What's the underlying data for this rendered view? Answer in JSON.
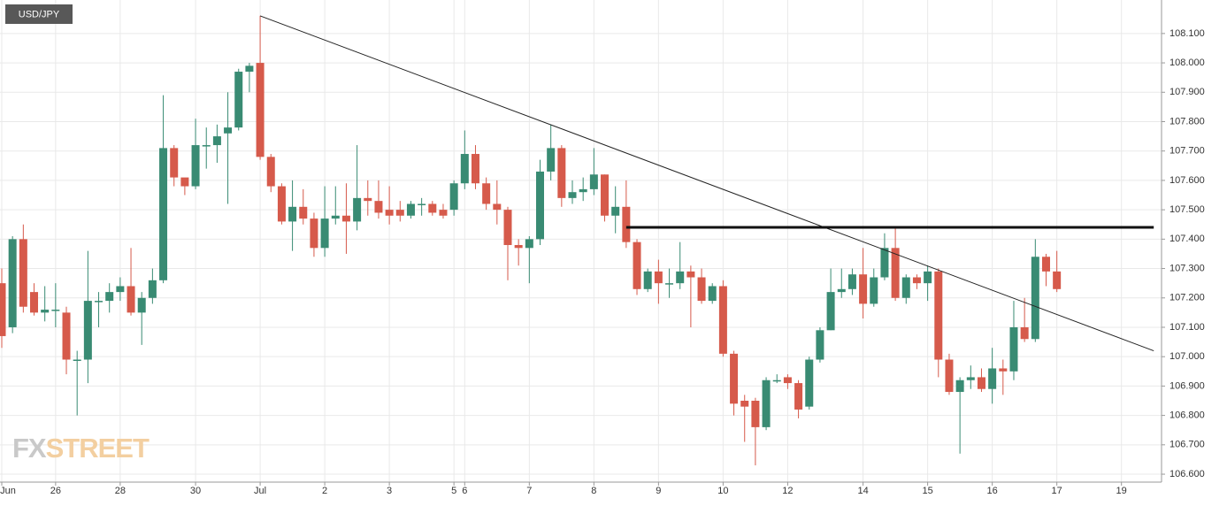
{
  "chart_data": {
    "type": "candlestick",
    "title": "USD/JPY",
    "watermark": [
      "FX",
      "STREET"
    ],
    "categories": [
      "Jun",
      null,
      null,
      null,
      null,
      "26",
      null,
      null,
      null,
      null,
      null,
      "28",
      null,
      null,
      null,
      null,
      null,
      null,
      "30",
      null,
      null,
      null,
      null,
      null,
      "Jul",
      null,
      null,
      null,
      null,
      null,
      "2",
      null,
      null,
      null,
      null,
      null,
      "3",
      null,
      null,
      null,
      null,
      null,
      "5",
      "6",
      null,
      null,
      null,
      null,
      null,
      "7",
      null,
      null,
      null,
      null,
      null,
      "8",
      null,
      null,
      null,
      null,
      null,
      "9",
      null,
      null,
      null,
      null,
      null,
      "10",
      null,
      null,
      null,
      null,
      null,
      "12",
      null,
      null,
      null,
      null,
      null,
      null,
      "14",
      null,
      null,
      null,
      null,
      null,
      "15",
      null,
      null,
      null,
      null,
      null,
      "16",
      null,
      null,
      null,
      null,
      null,
      "17",
      null,
      null,
      null,
      null,
      null,
      "19",
      null,
      null,
      null
    ],
    "open": [
      107.25,
      107.1,
      107.4,
      107.22,
      107.15,
      107.16,
      107.15,
      106.99,
      106.99,
      107.19,
      107.19,
      107.22,
      107.24,
      107.15,
      107.2,
      107.26,
      107.71,
      107.61,
      107.58,
      107.72,
      107.72,
      107.76,
      107.78,
      107.97,
      108.0,
      107.68,
      107.58,
      107.46,
      107.51,
      107.47,
      107.37,
      107.47,
      107.48,
      107.46,
      107.54,
      107.53,
      107.5,
      107.5,
      107.48,
      107.52,
      107.52,
      107.5,
      107.5,
      107.59,
      107.69,
      107.59,
      107.52,
      107.5,
      107.38,
      107.37,
      107.4,
      107.63,
      107.71,
      107.54,
      107.56,
      107.57,
      107.62,
      107.48,
      107.51,
      107.39,
      107.23,
      107.29,
      107.25,
      107.25,
      107.29,
      107.27,
      107.19,
      107.24,
      107.01,
      106.85,
      106.85,
      106.76,
      106.92,
      106.93,
      106.91,
      106.83,
      106.99,
      107.09,
      107.22,
      107.23,
      107.28,
      107.18,
      107.27,
      107.37,
      107.2,
      107.27,
      107.25,
      107.29,
      106.99,
      106.88,
      106.92,
      106.93,
      106.89,
      106.96,
      106.95,
      107.1,
      107.06,
      107.34,
      107.29,
      null,
      null,
      null,
      null,
      null,
      null,
      null,
      null,
      null
    ],
    "high": [
      107.3,
      107.41,
      107.45,
      107.25,
      107.24,
      107.25,
      107.17,
      107.02,
      107.36,
      107.22,
      107.25,
      107.27,
      107.37,
      107.22,
      107.3,
      107.89,
      107.72,
      107.6,
      107.81,
      107.78,
      107.79,
      107.9,
      107.98,
      108.0,
      108.16,
      107.69,
      107.59,
      107.6,
      107.57,
      107.49,
      107.58,
      107.58,
      107.59,
      107.72,
      107.6,
      107.6,
      107.58,
      107.53,
      107.53,
      107.54,
      107.53,
      107.52,
      107.6,
      107.77,
      107.72,
      107.61,
      107.6,
      107.51,
      107.4,
      107.41,
      107.67,
      107.79,
      107.72,
      107.6,
      107.61,
      107.71,
      107.62,
      107.58,
      107.6,
      107.4,
      107.3,
      107.33,
      107.3,
      107.39,
      107.31,
      107.3,
      107.25,
      107.26,
      107.02,
      106.87,
      106.86,
      106.93,
      106.94,
      106.94,
      106.92,
      107.0,
      107.1,
      107.3,
      107.3,
      107.3,
      107.37,
      107.3,
      107.42,
      107.44,
      107.28,
      107.28,
      107.31,
      107.3,
      107.01,
      106.93,
      106.97,
      106.96,
      107.03,
      106.99,
      107.19,
      107.2,
      107.4,
      107.35,
      107.36,
      null,
      null,
      null,
      null,
      null,
      null,
      null,
      null,
      null
    ],
    "low": [
      107.03,
      107.08,
      107.15,
      107.14,
      107.12,
      107.1,
      106.94,
      106.8,
      106.91,
      107.1,
      107.15,
      107.19,
      107.14,
      107.04,
      107.18,
      107.25,
      107.58,
      107.55,
      107.57,
      107.64,
      107.66,
      107.52,
      107.77,
      107.9,
      107.67,
      107.56,
      107.45,
      107.36,
      107.45,
      107.34,
      107.34,
      107.45,
      107.35,
      107.43,
      107.48,
      107.47,
      107.45,
      107.46,
      107.47,
      107.48,
      107.48,
      107.47,
      107.48,
      107.57,
      107.57,
      107.5,
      107.45,
      107.26,
      107.31,
      107.25,
      107.38,
      107.6,
      107.51,
      107.52,
      107.53,
      107.55,
      107.46,
      107.42,
      107.37,
      107.21,
      107.22,
      107.18,
      107.2,
      107.23,
      107.1,
      107.18,
      107.18,
      107.0,
      106.8,
      106.71,
      106.63,
      106.75,
      106.91,
      106.89,
      106.79,
      106.82,
      106.98,
      107.09,
      107.2,
      107.21,
      107.13,
      107.17,
      107.26,
      107.19,
      107.18,
      107.23,
      107.19,
      106.93,
      106.87,
      106.67,
      106.89,
      106.88,
      106.84,
      106.87,
      106.92,
      107.05,
      107.05,
      107.24,
      107.22,
      null,
      null,
      null,
      null,
      null,
      null,
      null,
      null,
      null
    ],
    "close": [
      107.07,
      107.4,
      107.17,
      107.15,
      107.16,
      107.16,
      106.99,
      106.99,
      107.19,
      107.19,
      107.22,
      107.24,
      107.15,
      107.2,
      107.26,
      107.71,
      107.61,
      107.58,
      107.72,
      107.72,
      107.75,
      107.78,
      107.97,
      107.99,
      107.68,
      107.58,
      107.46,
      107.51,
      107.47,
      107.37,
      107.47,
      107.48,
      107.46,
      107.54,
      107.53,
      107.49,
      107.48,
      107.48,
      107.52,
      107.52,
      107.49,
      107.48,
      107.59,
      107.69,
      107.59,
      107.52,
      107.5,
      107.38,
      107.37,
      107.4,
      107.63,
      107.71,
      107.54,
      107.56,
      107.57,
      107.62,
      107.48,
      107.51,
      107.39,
      107.23,
      107.29,
      107.25,
      107.25,
      107.29,
      107.27,
      107.19,
      107.24,
      107.01,
      106.84,
      106.83,
      106.76,
      106.92,
      106.92,
      106.91,
      106.82,
      106.99,
      107.09,
      107.22,
      107.23,
      107.28,
      107.18,
      107.27,
      107.37,
      107.2,
      107.27,
      107.25,
      107.29,
      106.99,
      106.88,
      106.92,
      106.93,
      106.89,
      106.96,
      106.95,
      107.1,
      107.06,
      107.34,
      107.29,
      107.23,
      null,
      null,
      null,
      null,
      null,
      null,
      null,
      null,
      null
    ],
    "up_color": "#398b73",
    "down_color": "#d65a4b",
    "trendlines": [
      {
        "x": [
          24,
          107
        ],
        "y": [
          108.16,
          107.02
        ],
        "color": "#222222",
        "width": 1
      },
      {
        "x": [
          58,
          107
        ],
        "y": [
          107.44,
          107.44
        ],
        "color": "#111111",
        "width": 3
      }
    ],
    "ylim": [
      106.573,
      108.214
    ],
    "yticks": [
      {
        "value": 106.6,
        "label": "106.600"
      },
      {
        "value": 106.7,
        "label": "106.700"
      },
      {
        "value": 106.8,
        "label": "106.800"
      },
      {
        "value": 106.9,
        "label": "106.900"
      },
      {
        "value": 107.0,
        "label": "107.000"
      },
      {
        "value": 107.1,
        "label": "107.100"
      },
      {
        "value": 107.2,
        "label": "107.200"
      },
      {
        "value": 107.3,
        "label": "107.300"
      },
      {
        "value": 107.4,
        "label": "107.400"
      },
      {
        "value": 107.5,
        "label": "107.500"
      },
      {
        "value": 107.6,
        "label": "107.600"
      },
      {
        "value": 107.7,
        "label": "107.700"
      },
      {
        "value": 107.8,
        "label": "107.800"
      },
      {
        "value": 107.9,
        "label": "107.900"
      },
      {
        "value": 108.0,
        "label": "108.000"
      },
      {
        "value": 108.1,
        "label": "108.100"
      }
    ],
    "grid": true,
    "axis_side": "right"
  }
}
